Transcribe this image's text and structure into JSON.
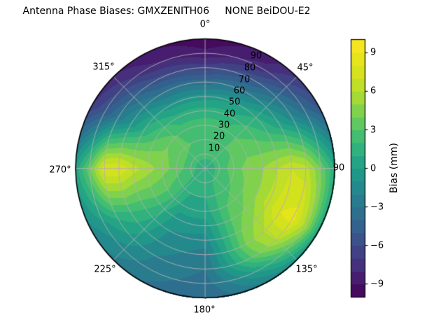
{
  "chart_data": {
    "type": "heatmap",
    "projection": "polar",
    "title": "Antenna Phase Biases: GMXZENITH06     NONE BeiDOU-E2",
    "angle_unit": "degrees",
    "angle_labels": [
      "0°",
      "45°",
      "90",
      "135°",
      "180°",
      "225°",
      "270°",
      "315°"
    ],
    "ring_labels": [
      "10",
      "20",
      "30",
      "40",
      "50",
      "60",
      "70",
      "80",
      "90"
    ],
    "azimuths_deg": [
      0,
      30,
      60,
      90,
      120,
      150,
      180,
      210,
      240,
      270,
      300,
      330
    ],
    "zeniths_deg": [
      0,
      10,
      20,
      30,
      40,
      50,
      60,
      70,
      80,
      90
    ],
    "bias_grid_mm": [
      [
        1.0,
        2.5,
        3.0,
        2.5,
        1.5,
        -0.5,
        -3.5,
        -6.5,
        -8.7,
        -9.7
      ],
      [
        1.0,
        2.5,
        3.0,
        2.5,
        1.5,
        0.0,
        -2.5,
        -5.0,
        -7.5,
        -8.7
      ],
      [
        1.0,
        2.5,
        3.0,
        3.5,
        3.0,
        2.0,
        0.5,
        -1.5,
        -3.5,
        -5.5
      ],
      [
        1.0,
        2.5,
        3.5,
        4.5,
        5.0,
        6.0,
        7.0,
        6.5,
        4.0,
        1.0
      ],
      [
        1.0,
        2.5,
        3.0,
        4.0,
        5.0,
        6.5,
        8.0,
        8.5,
        5.5,
        0.5
      ],
      [
        1.0,
        2.0,
        2.5,
        3.0,
        3.5,
        4.0,
        4.5,
        3.5,
        0.5,
        -2.0
      ],
      [
        1.0,
        1.5,
        1.0,
        0.5,
        -0.5,
        -1.5,
        -2.5,
        -3.0,
        -3.5,
        -4.0
      ],
      [
        1.0,
        1.5,
        1.0,
        0.5,
        -0.5,
        -1.0,
        -1.5,
        -2.0,
        -2.5,
        -3.0
      ],
      [
        1.0,
        2.0,
        2.5,
        3.0,
        3.0,
        2.5,
        2.0,
        1.0,
        -0.5,
        -1.5
      ],
      [
        1.0,
        2.5,
        3.5,
        4.5,
        5.5,
        6.5,
        8.0,
        8.0,
        4.0,
        0.5
      ],
      [
        1.0,
        2.5,
        3.5,
        4.0,
        3.0,
        1.5,
        -0.5,
        -2.5,
        -5.0,
        -7.0
      ],
      [
        1.0,
        2.5,
        3.0,
        2.5,
        1.5,
        -0.5,
        -3.0,
        -5.5,
        -7.7,
        -8.7
      ]
    ],
    "levels_mm": {
      "min": -10,
      "max": 10,
      "step": 1
    },
    "colormap": "viridis",
    "colormap_colors": [
      "#440154",
      "#482878",
      "#3e4a89",
      "#31688e",
      "#26828e",
      "#1f9e89",
      "#35b779",
      "#6ece58",
      "#b5de2b",
      "#dfe318",
      "#fde725"
    ],
    "grid_color": "#b0b0b0",
    "outline_color": "#000000",
    "colorbar": {
      "label": "Bias (mm)",
      "ticks": [
        "9",
        "6",
        "3",
        "0",
        "−3",
        "−6",
        "−9"
      ],
      "tick_values": [
        9,
        6,
        3,
        0,
        -3,
        -6,
        -9
      ],
      "range_mm": [
        -10,
        10
      ]
    }
  }
}
